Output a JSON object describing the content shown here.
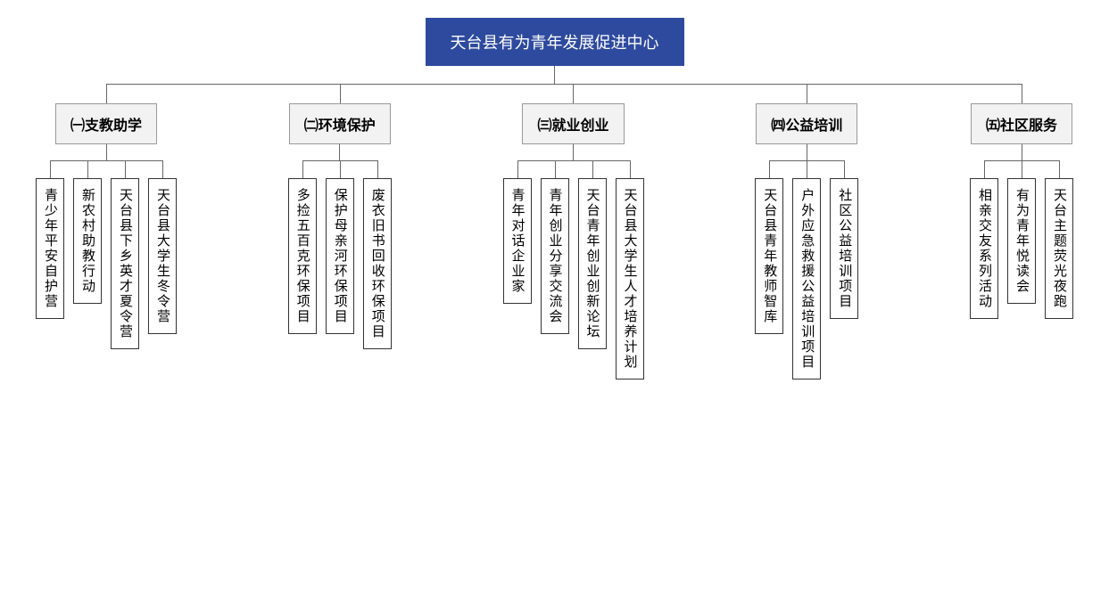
{
  "type": "tree",
  "background_color": "#ffffff",
  "root": {
    "label": "天台县有为青年发展促进中心",
    "bg_color": "#2e4a9e",
    "text_color": "#ffffff",
    "font_size": 18
  },
  "connector_color": "#666666",
  "category_style": {
    "bg_color": "#f2f2f2",
    "border_color": "#999999",
    "text_color": "#000000",
    "font_size": 16,
    "font_weight": "bold"
  },
  "leaf_style": {
    "bg_color": "#ffffff",
    "border_color": "#333333",
    "text_color": "#000000",
    "font_size": 15,
    "writing_mode": "vertical"
  },
  "categories": [
    {
      "label": "㈠支教助学",
      "items": [
        "青少年平安自护营",
        "新农村助教行动",
        "天台县下乡英才夏令营",
        "天台县大学生冬令营"
      ]
    },
    {
      "label": "㈡环境保护",
      "items": [
        "多捡五百克环保项目",
        "保护母亲河环保项目",
        "废衣旧书回收环保项目"
      ]
    },
    {
      "label": "㈢就业创业",
      "items": [
        "青年对话企业家",
        "青年创业分享交流会",
        "天台青年创业创新论坛",
        "天台县大学生人才培养计划"
      ]
    },
    {
      "label": "㈣公益培训",
      "items": [
        "天台县青年教师智库",
        "户外应急救援公益培训项目",
        "社区公益培训项目"
      ]
    },
    {
      "label": "㈤社区服务",
      "items": [
        "相亲交友系列活动",
        "有为青年悦读会",
        "天台主题荧光夜跑"
      ]
    }
  ]
}
